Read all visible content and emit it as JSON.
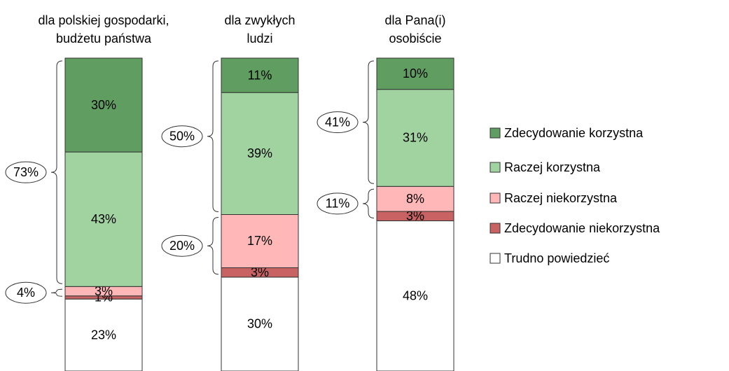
{
  "chart_data": {
    "type": "stacked-bar",
    "categories": [
      [
        "dla polskiej gospodarki,",
        "budżetu państwa"
      ],
      [
        "dla zwykłych",
        "ludzi"
      ],
      [
        "dla Pana(i)",
        "osobiście"
      ]
    ],
    "series": [
      {
        "name": "Zdecydowanie korzystna",
        "color": "#609d60",
        "values": [
          30,
          11,
          10
        ],
        "value_labels": [
          "30%",
          "11%",
          "10%"
        ]
      },
      {
        "name": "Raczej korzystna",
        "color": "#a0d3a0",
        "values": [
          43,
          39,
          31
        ],
        "value_labels": [
          "43%",
          "39%",
          "31%"
        ]
      },
      {
        "name": "Raczej niekorzystna",
        "color": "#ffb7b7",
        "values": [
          3,
          17,
          8
        ],
        "value_labels": [
          "3%",
          "17%",
          "8%"
        ]
      },
      {
        "name": "Zdecydowanie niekorzystna",
        "color": "#c96262",
        "values": [
          1,
          3,
          3
        ],
        "value_labels": [
          "1%",
          "3%",
          "3%"
        ]
      },
      {
        "name": "Trudno powiedzieć",
        "color": "#ffffff",
        "values": [
          23,
          30,
          48
        ],
        "value_labels": [
          "23%",
          "30%",
          "48%"
        ]
      }
    ],
    "totals": {
      "positive": {
        "values": [
          73,
          50,
          41
        ],
        "value_labels": [
          "73%",
          "50%",
          "41%"
        ]
      },
      "negative": {
        "values": [
          4,
          20,
          11
        ],
        "value_labels": [
          "4%",
          "20%",
          "11%"
        ]
      }
    },
    "ylim": [
      0,
      100
    ]
  }
}
